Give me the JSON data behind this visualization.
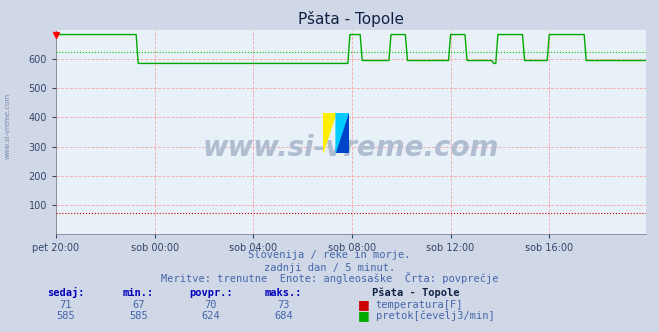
{
  "title": "Pšata - Topole",
  "bg_color": "#d0d8e8",
  "plot_bg_color": "#e8f0f8",
  "grid_color": "#ff8888",
  "title_color": "#112244",
  "tick_color": "#334466",
  "text_color": "#4466aa",
  "bold_text_color": "#0000bb",
  "ylim": [
    0,
    700
  ],
  "yticks": [
    100,
    200,
    300,
    400,
    500,
    600
  ],
  "n_points": 288,
  "temp_value": 71,
  "temp_min": 67,
  "temp_avg": 70,
  "temp_max": 73,
  "flow_sedaj": 585,
  "flow_min": 585,
  "flow_avg": 624,
  "flow_max": 684,
  "temp_color": "#cc0000",
  "flow_color": "#00aa00",
  "avg_color": "#00cc00",
  "watermark_text": "www.si-vreme.com",
  "watermark_color": "#b0bdd0",
  "logo_yellow": "#ffee00",
  "logo_cyan": "#00ccff",
  "logo_blue": "#0044cc",
  "subtitle1": "Slovenija / reke in morje.",
  "subtitle2": "zadnji dan / 5 minut.",
  "subtitle3": "Meritve: trenutne  Enote: angleosaške  Črta: povprečje",
  "xtick_labels": [
    "pet 20:00",
    "sob 00:00",
    "sob 04:00",
    "sob 08:00",
    "sob 12:00",
    "sob 16:00"
  ],
  "xtick_positions": [
    0,
    48,
    96,
    144,
    192,
    240
  ],
  "left_label": "www.si-vreme.com",
  "station_label": "Pšata - Topole",
  "col_headers": [
    "sedaj:",
    "min.:",
    "povpr.:",
    "maks.:"
  ],
  "temp_row": [
    "71",
    "67",
    "70",
    "73"
  ],
  "flow_row": [
    "585",
    "585",
    "624",
    "684"
  ],
  "temp_legend": "temperatura[F]",
  "flow_legend": "pretok[čevelj3/min]"
}
